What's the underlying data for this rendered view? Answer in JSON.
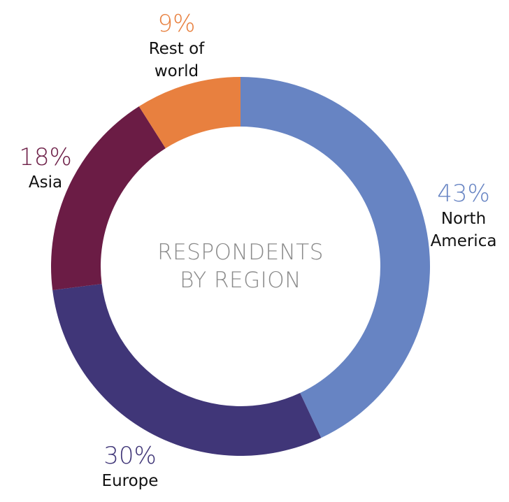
{
  "chart_data": {
    "type": "donut",
    "title": "RESPONDENTS BY REGION",
    "categories": [
      "North America",
      "Europe",
      "Asia",
      "Rest of world"
    ],
    "values": [
      43,
      30,
      18,
      9
    ],
    "value_labels": [
      "43%",
      "30%",
      "18%",
      "9%"
    ],
    "colors": [
      "#6784c3",
      "#403678",
      "#6b1c45",
      "#e8803f"
    ]
  }
}
